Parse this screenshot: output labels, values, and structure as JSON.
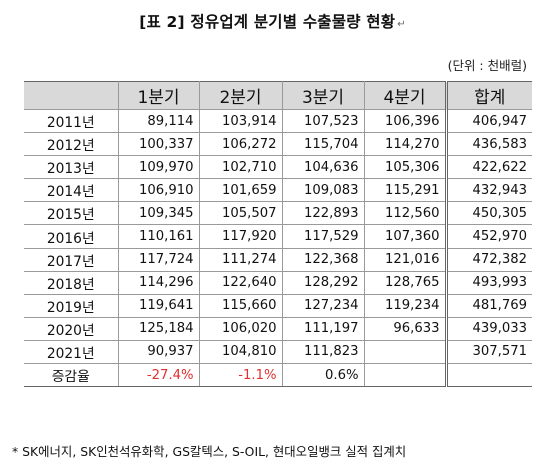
{
  "title": "[표 2] 정유업계 분기별 수출물량 현황",
  "title_mark": "↵",
  "unit": "(단위 : 천배럴)",
  "columns": [
    "",
    "1분기",
    "2분기",
    "3분기",
    "4분기",
    "합계"
  ],
  "rows": [
    {
      "year": "2011년",
      "q1": "89,114",
      "q2": "103,914",
      "q3": "107,523",
      "q4": "106,396",
      "total": "406,947"
    },
    {
      "year": "2012년",
      "q1": "100,337",
      "q2": "106,272",
      "q3": "115,704",
      "q4": "114,270",
      "total": "436,583"
    },
    {
      "year": "2013년",
      "q1": "109,970",
      "q2": "102,710",
      "q3": "104,636",
      "q4": "105,306",
      "total": "422,622"
    },
    {
      "year": "2014년",
      "q1": "106,910",
      "q2": "101,659",
      "q3": "109,083",
      "q4": "115,291",
      "total": "432,943"
    },
    {
      "year": "2015년",
      "q1": "109,345",
      "q2": "105,507",
      "q3": "122,893",
      "q4": "112,560",
      "total": "450,305"
    },
    {
      "year": "2016년",
      "q1": "110,161",
      "q2": "117,920",
      "q3": "117,529",
      "q4": "107,360",
      "total": "452,970"
    },
    {
      "year": "2017년",
      "q1": "117,724",
      "q2": "111,274",
      "q3": "122,368",
      "q4": "121,016",
      "total": "472,382"
    },
    {
      "year": "2018년",
      "q1": "114,296",
      "q2": "122,640",
      "q3": "128,292",
      "q4": "128,765",
      "total": "493,993"
    },
    {
      "year": "2019년",
      "q1": "119,641",
      "q2": "115,660",
      "q3": "127,234",
      "q4": "119,234",
      "total": "481,769"
    },
    {
      "year": "2020년",
      "q1": "125,184",
      "q2": "106,020",
      "q3": "111,197",
      "q4": "96,633",
      "total": "439,033"
    },
    {
      "year": "2021년",
      "q1": "90,937",
      "q2": "104,810",
      "q3": "111,823",
      "q4": "",
      "total": "307,571"
    },
    {
      "year": "증감율",
      "q1": "-27.4%",
      "q2": "-1.1%",
      "q3": "0.6%",
      "q4": "",
      "total": ""
    }
  ],
  "negative_color": "#e03030",
  "header_bg": "#d9d9d9",
  "footnote": "* SK에너지, SK인천석유화학, GS칼텍스, S-OIL, 현대오일뱅크 실적 집계치"
}
